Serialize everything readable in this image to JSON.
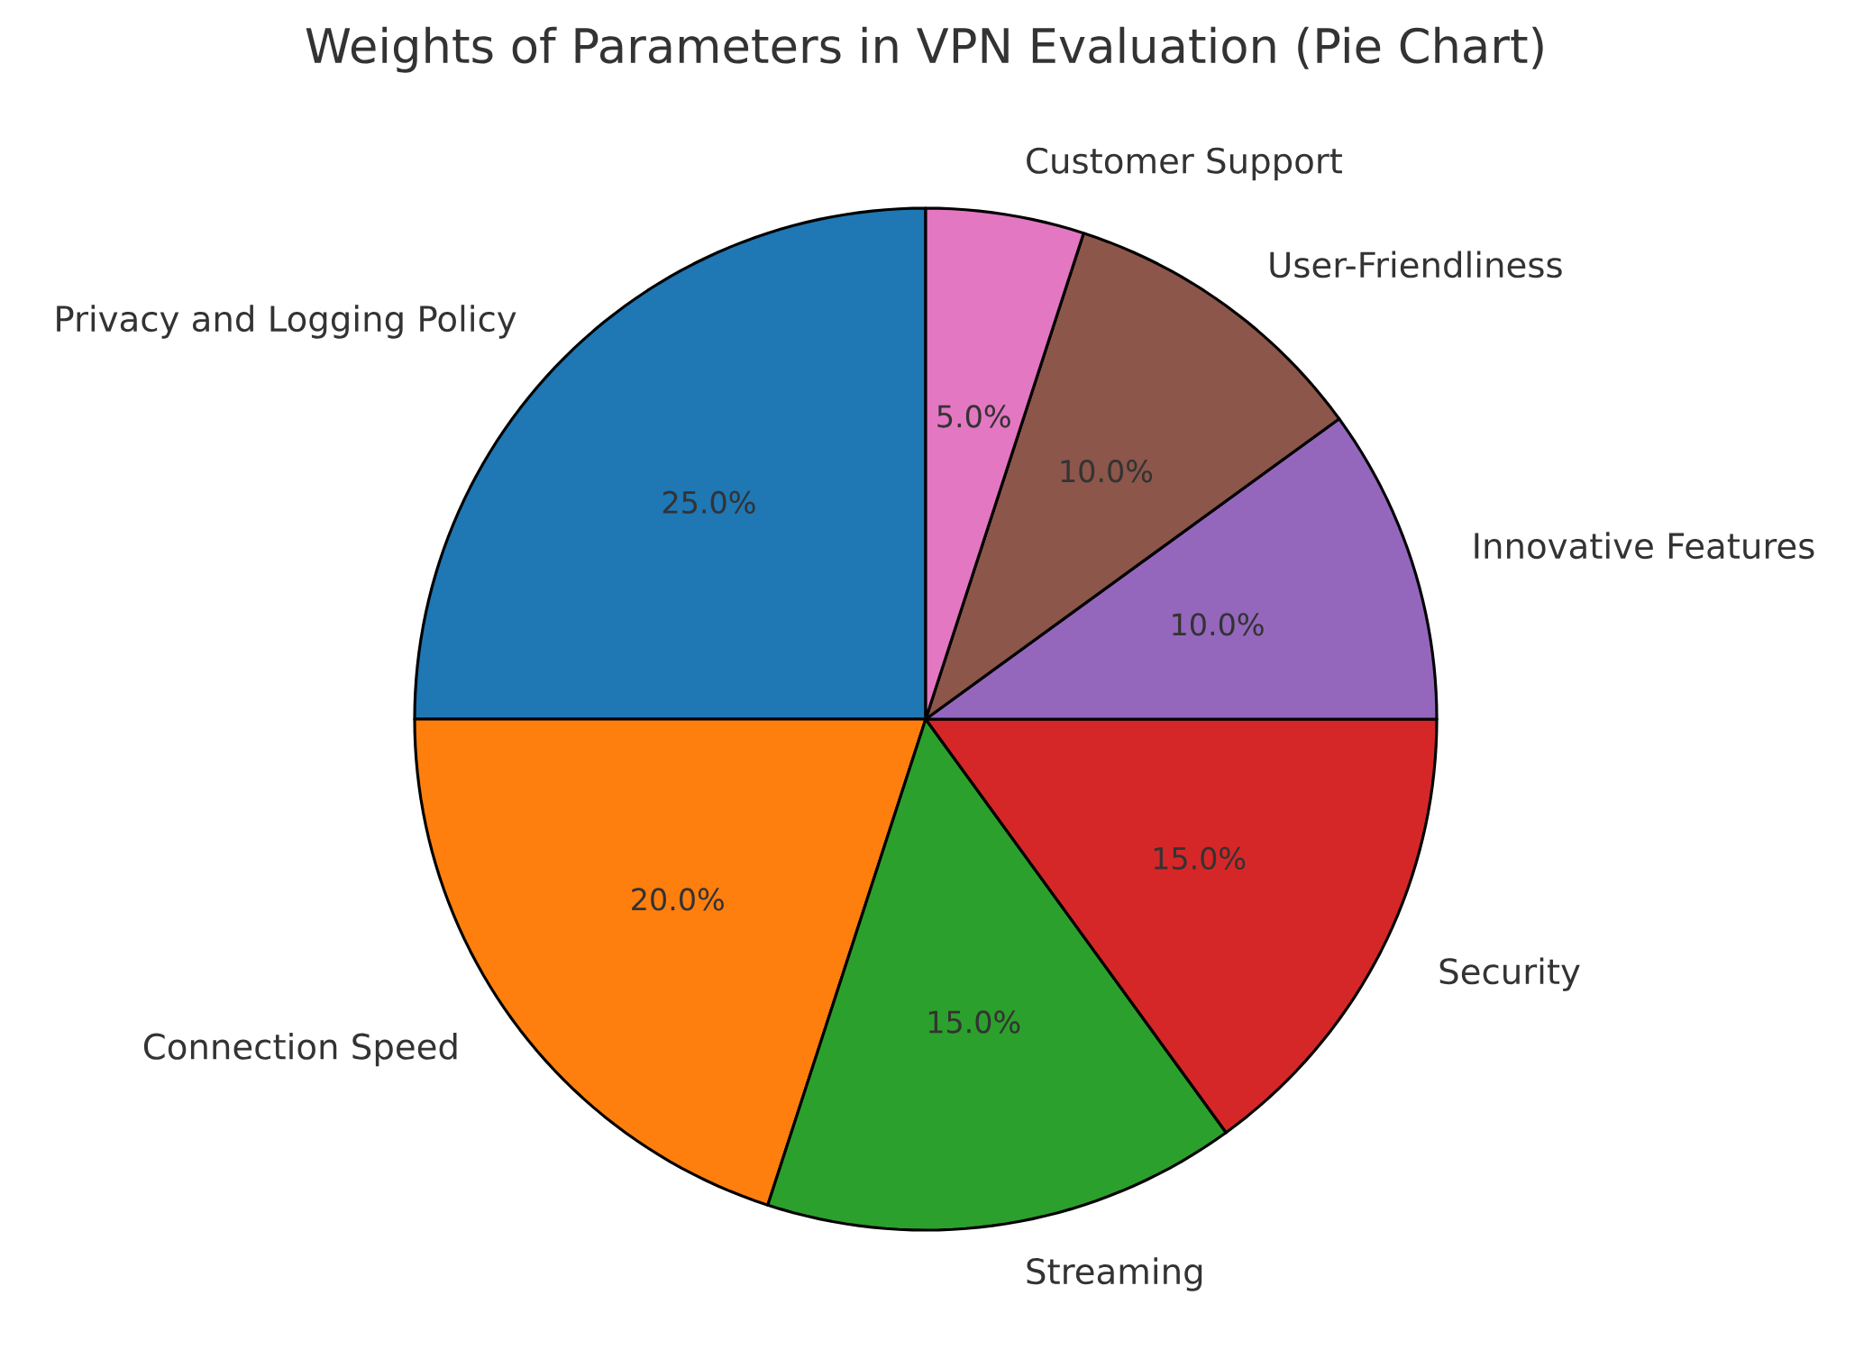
{
  "chart_data": {
    "type": "pie",
    "title": "Weights of Parameters in VPN Evaluation (Pie Chart)",
    "categories": [
      "Privacy and Logging Policy",
      "Connection Speed",
      "Streaming",
      "Security",
      "Innovative Features",
      "User-Friendliness",
      "Customer Support"
    ],
    "values": [
      25,
      20,
      15,
      15,
      10,
      10,
      5
    ],
    "colors": [
      "#1f77b4",
      "#ff7f0e",
      "#2ca02c",
      "#d62728",
      "#9467bd",
      "#8c564b",
      "#e377c2"
    ],
    "value_labels": [
      "25.0%",
      "20.0%",
      "15.0%",
      "15.0%",
      "10.0%",
      "10.0%",
      "5.0%"
    ]
  }
}
